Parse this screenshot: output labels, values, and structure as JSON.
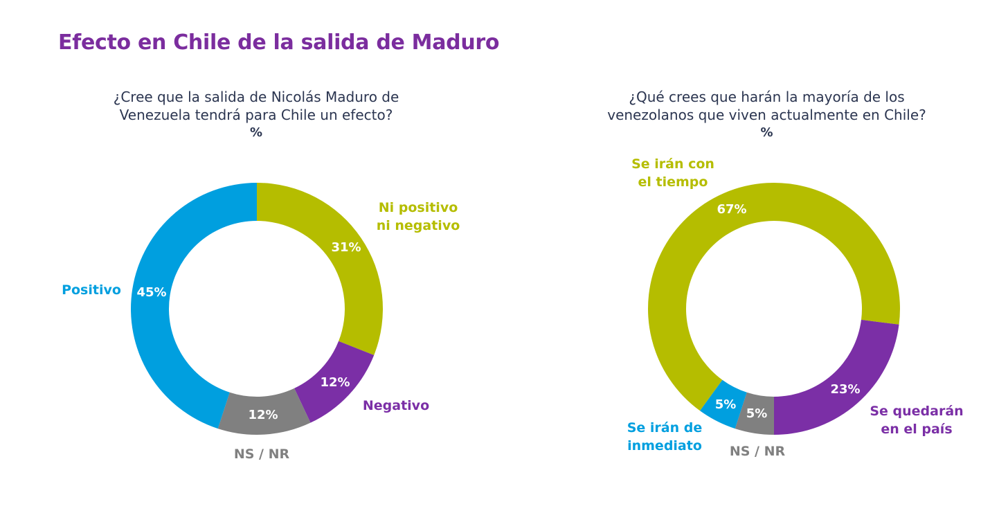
{
  "page": {
    "title": "Efecto en Chile de la salida de Maduro"
  },
  "chart_data": [
    {
      "type": "pie",
      "variant": "donut",
      "title": "¿Cree que la salida de Nicolás Maduro de Venezuela tendrá para Chile un efecto?",
      "title_lines": [
        "¿Cree que la salida de Nicolás Maduro de",
        "Venezuela tendrá para Chile un efecto?"
      ],
      "unit": "%",
      "start": "top",
      "direction": "clockwise",
      "slices": [
        {
          "label": "Ni positivo ni negativo",
          "label_lines": [
            "Ni positivo",
            "ni negativo"
          ],
          "value": 31,
          "display": "31%",
          "color": "#b5bd00"
        },
        {
          "label": "Negativo",
          "label_lines": [
            "Negativo"
          ],
          "value": 12,
          "display": "12%",
          "color": "#7b2fa6"
        },
        {
          "label": "NS / NR",
          "label_lines": [
            "NS / NR"
          ],
          "value": 12,
          "display": "12%",
          "color": "#808080"
        },
        {
          "label": "Positivo",
          "label_lines": [
            "Positivo"
          ],
          "value": 45,
          "display": "45%",
          "color": "#009fdf"
        }
      ]
    },
    {
      "type": "pie",
      "variant": "donut",
      "title": "¿Qué crees que harán la mayoría de los venezolanos que viven actualmente en Chile?",
      "title_lines": [
        "¿Qué crees que harán la mayoría de los",
        "venezolanos que viven actualmente en Chile?"
      ],
      "unit": "%",
      "start": "bottom",
      "direction": "clockwise",
      "slices": [
        {
          "label": "NS / NR",
          "label_lines": [
            "NS / NR"
          ],
          "value": 5,
          "display": "5%",
          "color": "#808080"
        },
        {
          "label": "Se irán de inmediato",
          "label_lines": [
            "Se irán de",
            "inmediato"
          ],
          "value": 5,
          "display": "5%",
          "color": "#009fdf"
        },
        {
          "label": "Se irán con el tiempo",
          "label_lines": [
            "Se irán con",
            "el tiempo"
          ],
          "value": 67,
          "display": "67%",
          "color": "#b5bd00"
        },
        {
          "label": "Se quedarán en el país",
          "label_lines": [
            "Se quedarán",
            "en el país"
          ],
          "value": 23,
          "display": "23%",
          "color": "#7b2fa6"
        }
      ]
    }
  ]
}
